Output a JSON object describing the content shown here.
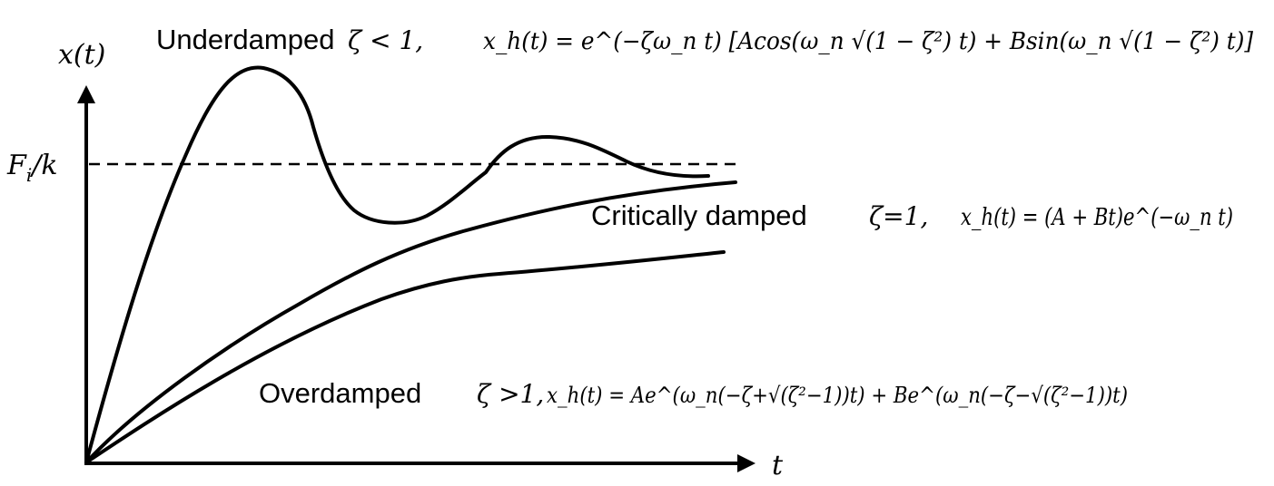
{
  "axes": {
    "y_label": "x(t)",
    "x_label": "t",
    "reference_label": "F",
    "reference_label_sub": "i",
    "reference_label_tail": "/k"
  },
  "underdamped": {
    "name": "Underdamped",
    "condition": "ζ < 1,",
    "equation": "x_h(t) = e^(−ζω_n t) [Acos(ω_n √(1 − ζ²) t) + Bsin(ω_n √(1 − ζ²) t)]"
  },
  "critical": {
    "name": "Critically damped",
    "condition": "ζ=1,",
    "equation": "x_h(t) = (A + Bt)e^(−ω_n t)"
  },
  "overdamped": {
    "name": "Overdamped",
    "condition": "ζ >1,",
    "equation": "x_h(t) = Ae^(ω_n(−ζ+√(ζ²−1))t) + Be^(ω_n(−ζ−√(ζ²−1))t)"
  }
}
